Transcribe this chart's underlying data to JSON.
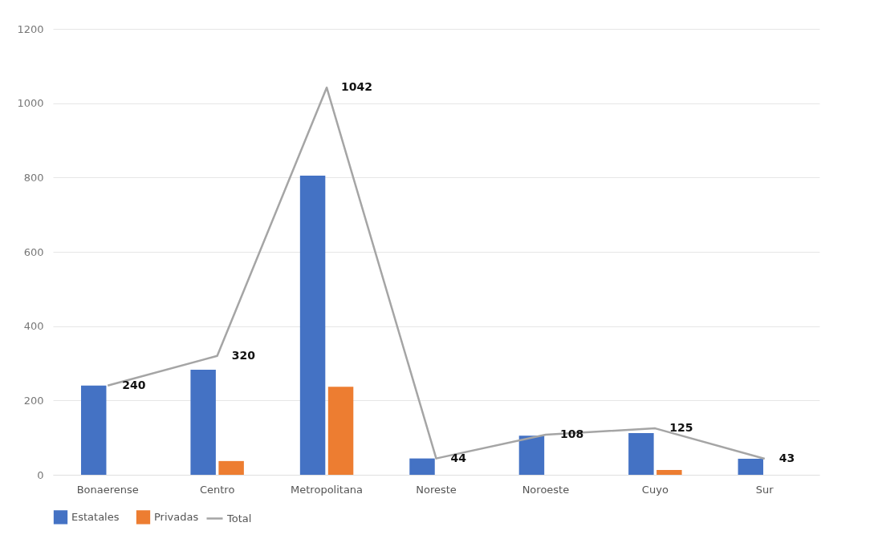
{
  "chart_data": {
    "type": "bar",
    "categories": [
      "Bonaerense",
      "Centro",
      "Metropolitana",
      "Noreste",
      "Noroeste",
      "Cuyo",
      "Sur"
    ],
    "ylim": [
      0,
      1200
    ],
    "yticks": [
      0,
      200,
      400,
      600,
      800,
      1000,
      1200
    ],
    "grid": "y",
    "legend": "bottom",
    "series": [
      {
        "name": "Estatales",
        "color": "#4472c4",
        "values": [
          240,
          283,
          805,
          44,
          105,
          112,
          43
        ]
      },
      {
        "name": "Privadas",
        "color": "#ed7d31",
        "values": [
          0,
          37,
          237,
          0,
          0,
          13,
          0
        ]
      },
      {
        "name": "Total",
        "type": "line",
        "color": "#a5a5a5",
        "marker": "none",
        "values": [
          240,
          320,
          1042,
          44,
          108,
          125,
          43
        ],
        "value_labels": [
          "240",
          "320",
          "1042",
          "44",
          "108",
          "125",
          "43"
        ]
      }
    ]
  }
}
